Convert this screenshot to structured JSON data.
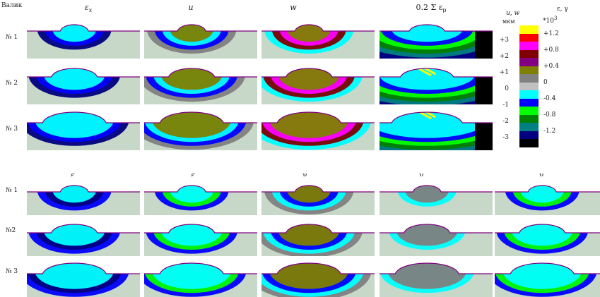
{
  "row_label_header": "Валик",
  "top_headers": [
    {
      "main": "ε",
      "sub": "x"
    },
    {
      "main": "u",
      "sub": ""
    },
    {
      "main": "w",
      "sub": ""
    },
    {
      "main": "0.2 Σ ε",
      "sub": "p"
    }
  ],
  "bottom_headers": [
    {
      "main": "ε",
      "sub": "y"
    },
    {
      "main": "ε",
      "sub": "z"
    },
    {
      "main": "γ",
      "sub": "yz"
    },
    {
      "main": "γ",
      "sub": "xz"
    },
    {
      "main": "γ",
      "sub": "xy"
    }
  ],
  "row_labels_top": [
    "№ 1",
    "№ 2",
    "№ 3"
  ],
  "row_labels_bottom": [
    "№ 1",
    "№2",
    "№ 3"
  ],
  "legend": {
    "left_title": "u, w",
    "left_unit": "мкм",
    "right_title": "ε, γ",
    "right_unit": "*10",
    "right_exp": "3",
    "left_ticks": [
      "+3",
      "+2",
      "+1",
      "0",
      "-1",
      "-2",
      "-3"
    ],
    "right_ticks": [
      "+1.2",
      "+0.8",
      "+0.4",
      "0",
      "-0.4",
      "-0.8",
      "-1.2"
    ],
    "colors": [
      "#ffff00",
      "#ff0000",
      "#ff00ff",
      "#800000",
      "#800080",
      "#808000",
      "#808080",
      "#c0c0c0",
      "#00ffff",
      "#0000ff",
      "#00ff00",
      "#008000",
      "#008080",
      "#000080",
      "#000000"
    ]
  },
  "colors": {
    "background_field": "#c8d8c8",
    "bead_outline": "#800080",
    "surface_line": "#800080"
  }
}
